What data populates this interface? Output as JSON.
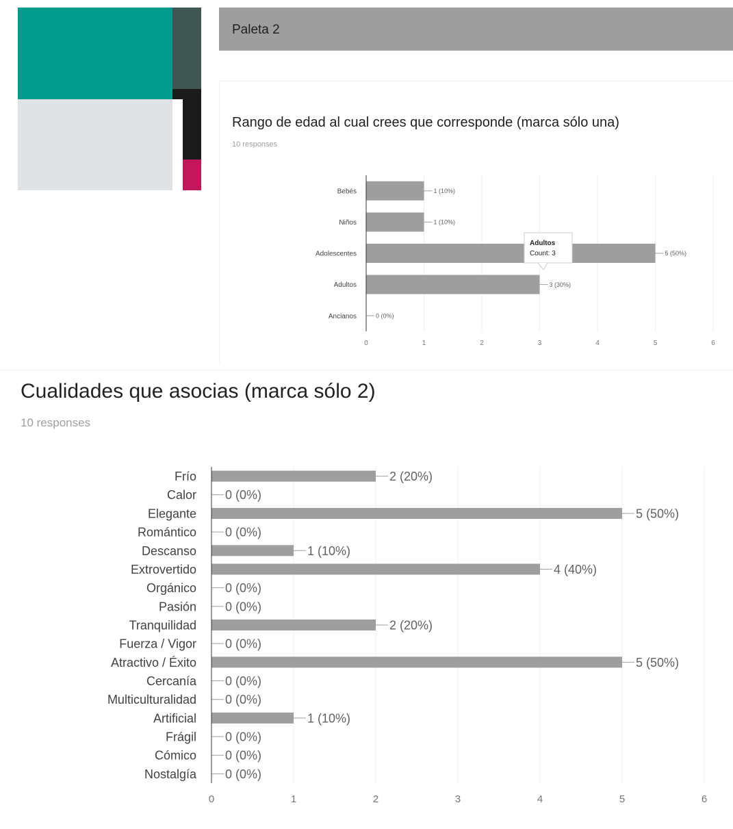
{
  "palette": {
    "colors": {
      "teal": "#009a8e",
      "dark_slate": "#3f5653",
      "near_black": "#1b1b1b",
      "light_gray": "#dfe2e5",
      "crimson": "#c2185b",
      "white": "#ffffff"
    }
  },
  "header": {
    "title": "Paleta 2"
  },
  "question1": {
    "title": "Rango de edad al cual crees que corresponde (marca sólo una)",
    "responses": "10 responses"
  },
  "question2": {
    "title": "Cualidades que asocias (marca sólo 2)",
    "responses": "10 responses"
  },
  "chart_data": [
    {
      "type": "bar",
      "orientation": "horizontal",
      "categories": [
        "Bebés",
        "Niños",
        "Adolescentes",
        "Adultos",
        "Ancianos"
      ],
      "values": [
        1,
        1,
        5,
        3,
        0
      ],
      "labels": [
        "1 (10%)",
        "1 (10%)",
        "5 (50%)",
        "3 (30%)",
        "0 (0%)"
      ],
      "xlim": [
        0,
        6
      ],
      "xticks": [
        "0",
        "1",
        "2",
        "3",
        "4",
        "5",
        "6"
      ],
      "grid": true,
      "bar_color": "#9e9e9e",
      "tooltip": {
        "category": "Adultos",
        "title": "Adultos",
        "text": "Count: 3"
      }
    },
    {
      "type": "bar",
      "orientation": "horizontal",
      "categories": [
        "Frío",
        "Calor",
        "Elegante",
        "Romántico",
        "Descanso",
        "Extrovertido",
        "Orgánico",
        "Pasión",
        "Tranquilidad",
        "Fuerza / Vigor",
        "Atractivo / Éxito",
        "Cercanía",
        "Multiculturalidad",
        "Artificial",
        "Frágil",
        "Cómico",
        "Nostalgía"
      ],
      "values": [
        2,
        0,
        5,
        0,
        1,
        4,
        0,
        0,
        2,
        0,
        5,
        0,
        0,
        1,
        0,
        0,
        0
      ],
      "labels": [
        "2 (20%)",
        "0 (0%)",
        "5 (50%)",
        "0 (0%)",
        "1 (10%)",
        "4 (40%)",
        "0 (0%)",
        "0 (0%)",
        "2 (20%)",
        "0 (0%)",
        "5 (50%)",
        "0 (0%)",
        "0 (0%)",
        "1 (10%)",
        "0 (0%)",
        "0 (0%)",
        "0 (0%)"
      ],
      "xlim": [
        0,
        6
      ],
      "xticks": [
        "0",
        "1",
        "2",
        "3",
        "4",
        "5",
        "6"
      ],
      "grid": true,
      "bar_color": "#9e9e9e"
    }
  ]
}
